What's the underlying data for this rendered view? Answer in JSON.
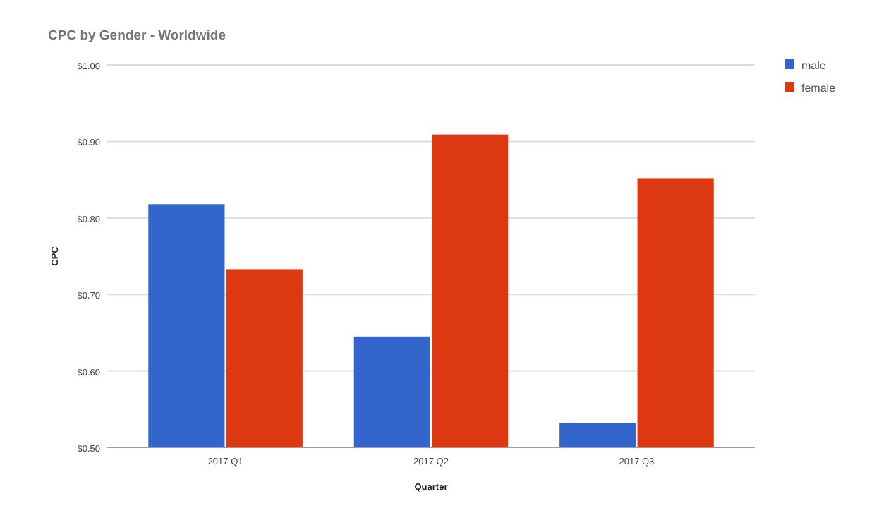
{
  "chart_data": {
    "type": "bar",
    "title": "CPC by Gender - Worldwide",
    "xlabel": "Quarter",
    "ylabel": "CPC",
    "categories": [
      "2017 Q1",
      "2017 Q2",
      "2017 Q3"
    ],
    "series": [
      {
        "name": "male",
        "color": "#3366cc",
        "values": [
          0.818,
          0.645,
          0.532
        ]
      },
      {
        "name": "female",
        "color": "#dc3912",
        "values": [
          0.733,
          0.909,
          0.852
        ]
      }
    ],
    "ylim": [
      0.5,
      1.0
    ],
    "yticks": [
      {
        "value": 0.5,
        "label": "$0.50"
      },
      {
        "value": 0.6,
        "label": "$0.60"
      },
      {
        "value": 0.7,
        "label": "$0.70"
      },
      {
        "value": 0.8,
        "label": "$0.80"
      },
      {
        "value": 0.9,
        "label": "$0.90"
      },
      {
        "value": 1.0,
        "label": "$1.00"
      }
    ],
    "grid": true,
    "legend": "top right"
  }
}
